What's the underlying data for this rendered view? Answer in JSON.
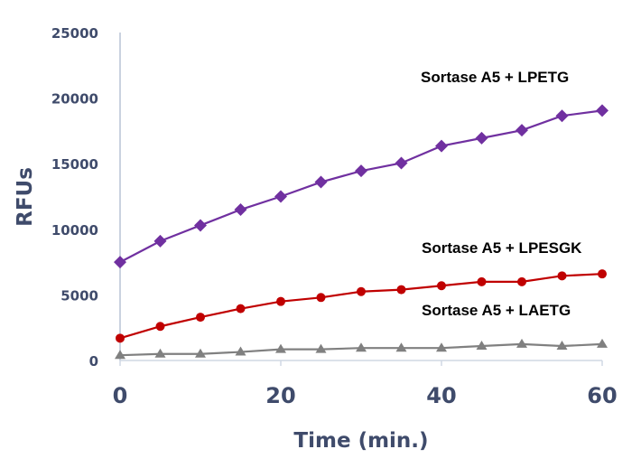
{
  "chart_data": {
    "type": "line",
    "title": "",
    "xlabel": "Time (min.)",
    "ylabel": "RFUs",
    "xlim": [
      0,
      60
    ],
    "ylim": [
      0,
      25000
    ],
    "xticks": [
      0,
      20,
      40,
      60
    ],
    "yticks": [
      0,
      5000,
      10000,
      15000,
      20000,
      25000
    ],
    "grid": false,
    "x": [
      0,
      5,
      10,
      15,
      20,
      25,
      30,
      35,
      40,
      45,
      50,
      55,
      60
    ],
    "series": [
      {
        "name": "Sortase A5 + LPETG",
        "color": "#7030a0",
        "marker": "diamond",
        "values": [
          7500,
          9100,
          10300,
          11500,
          12500,
          13600,
          14450,
          15050,
          16350,
          16950,
          17550,
          18650,
          19050
        ]
      },
      {
        "name": "Sortase A5 + LPESGK",
        "color": "#c00000",
        "marker": "circle",
        "values": [
          1700,
          2600,
          3300,
          3950,
          4500,
          4800,
          5250,
          5400,
          5700,
          6000,
          6000,
          6450,
          6600
        ]
      },
      {
        "name": "Sortase A5 + LAETG",
        "color": "#808080",
        "marker": "triangle",
        "values": [
          400,
          500,
          500,
          650,
          850,
          850,
          950,
          950,
          950,
          1100,
          1250,
          1100,
          1250
        ]
      }
    ]
  }
}
